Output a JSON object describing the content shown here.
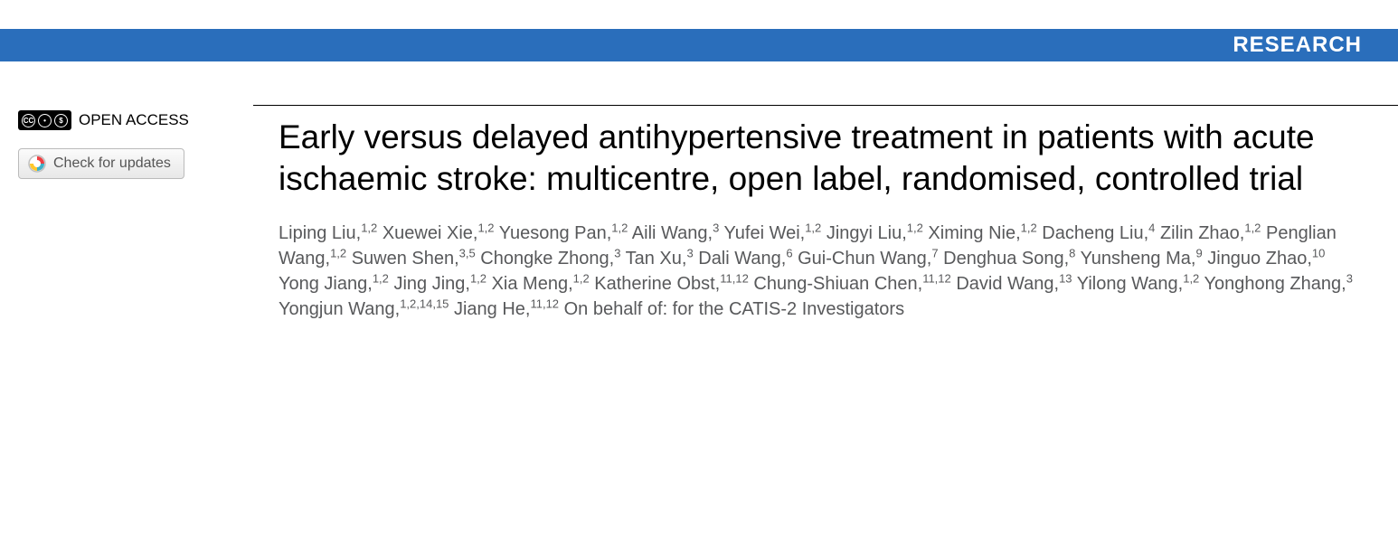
{
  "banner": {
    "label": "RESEARCH",
    "background_color": "#2a6ebb",
    "text_color": "#ffffff"
  },
  "sidebar": {
    "open_access_label": "OPEN ACCESS",
    "check_updates_label": "Check for updates"
  },
  "article": {
    "title": "Early versus delayed antihypertensive treatment in patients with acute ischaemic stroke: multicentre, open label, randomised, controlled trial",
    "authors": [
      {
        "name": "Liping Liu",
        "affil": "1,2"
      },
      {
        "name": "Xuewei Xie",
        "affil": "1,2"
      },
      {
        "name": "Yuesong Pan",
        "affil": "1,2"
      },
      {
        "name": "Aili Wang",
        "affil": "3"
      },
      {
        "name": "Yufei Wei",
        "affil": "1,2"
      },
      {
        "name": "Jingyi Liu",
        "affil": "1,2"
      },
      {
        "name": "Ximing Nie",
        "affil": "1,2"
      },
      {
        "name": "Dacheng Liu",
        "affil": "4"
      },
      {
        "name": "Zilin Zhao",
        "affil": "1,2"
      },
      {
        "name": "Penglian Wang",
        "affil": "1,2"
      },
      {
        "name": "Suwen Shen",
        "affil": "3,5"
      },
      {
        "name": "Chongke Zhong",
        "affil": "3"
      },
      {
        "name": "Tan Xu",
        "affil": "3"
      },
      {
        "name": "Dali Wang",
        "affil": "6"
      },
      {
        "name": "Gui-Chun Wang",
        "affil": "7"
      },
      {
        "name": "Denghua Song",
        "affil": "8"
      },
      {
        "name": "Yunsheng Ma",
        "affil": "9"
      },
      {
        "name": "Jinguo Zhao",
        "affil": "10"
      },
      {
        "name": "Yong Jiang",
        "affil": "1,2"
      },
      {
        "name": "Jing Jing",
        "affil": "1,2"
      },
      {
        "name": "Xia Meng",
        "affil": "1,2"
      },
      {
        "name": "Katherine Obst",
        "affil": "11,12"
      },
      {
        "name": "Chung-Shiuan Chen",
        "affil": "11,12"
      },
      {
        "name": "David Wang",
        "affil": "13"
      },
      {
        "name": "Yilong Wang",
        "affil": "1,2"
      },
      {
        "name": "Yonghong Zhang",
        "affil": "3"
      },
      {
        "name": "Yongjun Wang",
        "affil": "1,2,14,15"
      },
      {
        "name": "Jiang He",
        "affil": "11,12"
      }
    ],
    "collaboration_text": "On behalf of: for the CATIS-2 Investigators"
  },
  "styling": {
    "title_font_family": "Arial, Helvetica, sans-serif",
    "title_font_size": 37,
    "title_color": "#000000",
    "author_font_size": 20,
    "author_color": "#58595b",
    "body_background": "#ffffff"
  }
}
